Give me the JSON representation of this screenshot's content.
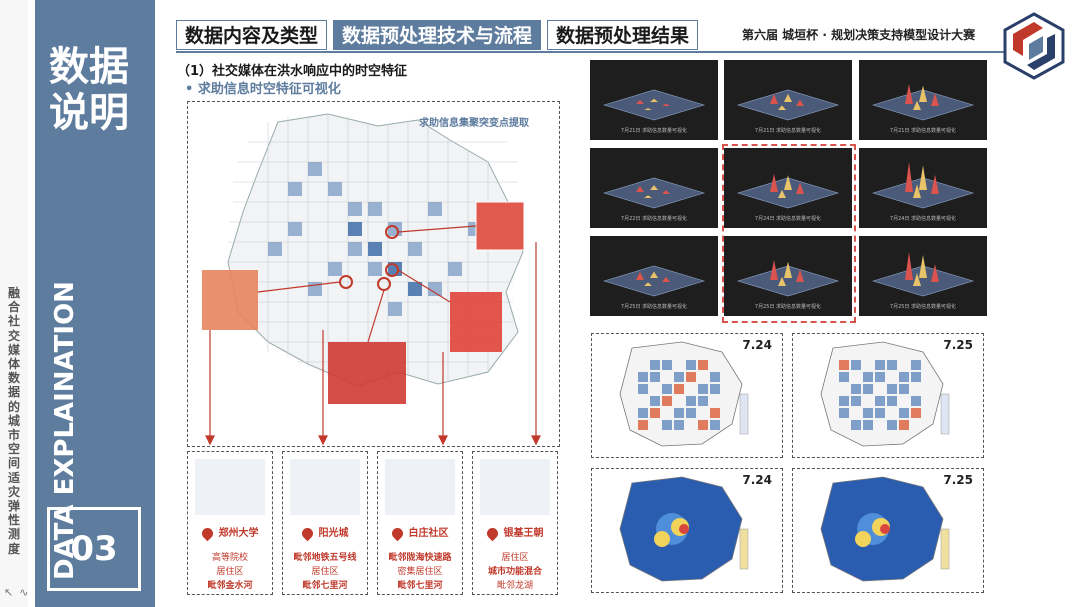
{
  "sidebar": {
    "vertical_text": "融合社交媒体数据的城市空间适灾弹性测度",
    "big_title": "数据说明",
    "en_title": "DATA EXPLAINATION",
    "section_number": "03"
  },
  "header": {
    "tabs": [
      {
        "label": "数据内容及类型",
        "active": false
      },
      {
        "label": "数据预处理技术与流程",
        "active": true
      },
      {
        "label": "数据预处理结果",
        "active": false
      }
    ],
    "competition": "第六届 城垣杯 · 规划决策支持模型设计大赛"
  },
  "section": {
    "title": "（1）社交媒体在洪水响应中的时空特征",
    "bullet": "•   求助信息时空特征可视化"
  },
  "main_map": {
    "label": "求助信息集聚突变点提取"
  },
  "cards": [
    {
      "title": "郑州大学",
      "lines": [
        "高等院校",
        "居住区",
        "毗邻金水河"
      ]
    },
    {
      "title": "阳光城",
      "lines": [
        "毗邻地铁五号线",
        "居住区",
        "毗邻七里河"
      ]
    },
    {
      "title": "白庄社区",
      "lines": [
        "毗邻陇海快速路",
        "密集居住区",
        "毗邻七里河"
      ]
    },
    {
      "title": "银基王朝",
      "lines": [
        "居住区",
        "城市功能混合",
        "毗邻龙湖"
      ]
    }
  ],
  "render_captions": [
    "7月21日 求助信息数量可视化",
    "7月21日 求助信息数量可视化",
    "7月21日 求助信息数量可视化",
    "7月22日 求助信息数量可视化",
    "7月24日 求助信息数量可视化",
    "7月24日 求助信息数量可视化",
    "7月25日 求助信息数量可视化",
    "7月25日 求助信息数量可视化",
    "7月25日 求助信息数量可视化"
  ],
  "map_cards": [
    {
      "date": "7.24"
    },
    {
      "date": "7.25"
    },
    {
      "date": "7.24"
    },
    {
      "date": "7.25"
    }
  ],
  "colors": {
    "primary": "#5e7c9e",
    "accent_red": "#c0392b",
    "dark_bg": "#1e1e1e",
    "kde_blue": "#2a5db0"
  }
}
